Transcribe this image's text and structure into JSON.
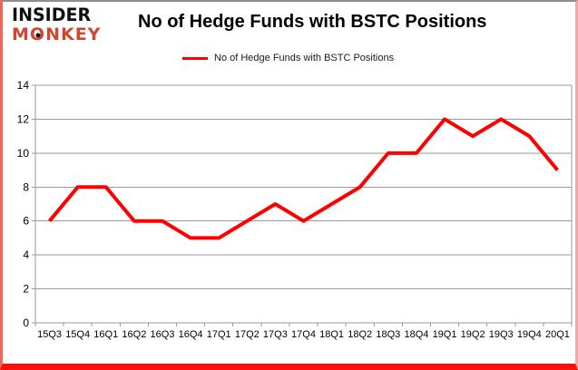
{
  "logo": {
    "line1": "INSIDER",
    "monkey_m": "M",
    "monkey_o": "O",
    "monkey_rest": "NKEY"
  },
  "title": "No of Hedge Funds with BSTC Positions",
  "legend": {
    "label": "No of Hedge Funds with BSTC Positions"
  },
  "colors": {
    "logo_black": "#0f0f0f",
    "logo_red": "#cf4631",
    "line_red": "#ff0000",
    "grid_gray": "#9a9a9a",
    "axis_text": "#000000",
    "frame_bottom_red": "#fa100c"
  },
  "chart_data": {
    "type": "line",
    "title": "No of Hedge Funds with BSTC Positions",
    "categories": [
      "15Q3",
      "15Q4",
      "16Q1",
      "16Q2",
      "16Q3",
      "16Q4",
      "17Q1",
      "17Q2",
      "17Q3",
      "17Q4",
      "18Q1",
      "18Q2",
      "18Q3",
      "18Q4",
      "19Q1",
      "19Q2",
      "19Q3",
      "19Q4",
      "20Q1"
    ],
    "series": [
      {
        "name": "No of Hedge Funds with BSTC Positions",
        "values": [
          6,
          8,
          8,
          6,
          6,
          5,
          5,
          6,
          7,
          6,
          7,
          8,
          10,
          10,
          12,
          11,
          12,
          11,
          9
        ]
      }
    ],
    "xlabel": "",
    "ylabel": "",
    "ylim": [
      0,
      14
    ],
    "ytick_step": 2,
    "grid": true,
    "legend_position": "top",
    "line_width": 4
  }
}
